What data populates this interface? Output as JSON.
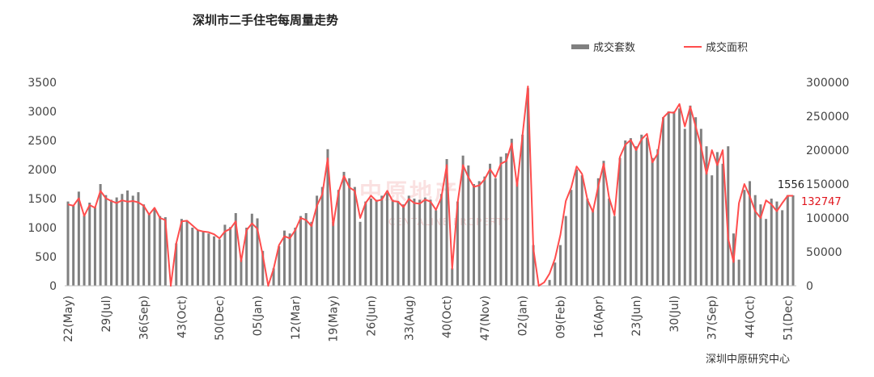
{
  "chart_data": {
    "type": "bar",
    "title": "深圳市二手住宅每周量走势",
    "source": "深圳中原研究中心",
    "watermark": "中原地产",
    "watermark_sub": "CENTALINE PROPERTY",
    "legend_placement": "top-right",
    "grid": false,
    "x_tick_labels": [
      "22(May)",
      "29(Jul)",
      "36(Sep)",
      "43(Oct)",
      "50(Dec)",
      "05(Jan)",
      "12(Mar)",
      "19(May)",
      "26(Jun)",
      "33(Aug)",
      "40(Oct)",
      "47(Nov)",
      "02(Jan)",
      "09(Feb)",
      "16(Apr)",
      "23(Jun)",
      "30(Jul)",
      "37(Sep)",
      "44(Oct)",
      "51(Dec)"
    ],
    "x_tick_index": [
      0,
      7,
      14,
      21,
      28,
      35,
      42,
      49,
      56,
      63,
      70,
      77,
      84,
      91,
      98,
      105,
      112,
      119,
      126,
      133
    ],
    "y_left": {
      "ylim": [
        0,
        3500
      ],
      "ticks": [
        0,
        500,
        1000,
        1500,
        2000,
        2500,
        3000,
        3500
      ]
    },
    "y_right": {
      "ylim": [
        0,
        300000
      ],
      "ticks": [
        0,
        50000,
        100000,
        150000,
        200000,
        250000,
        300000
      ]
    },
    "annotations": {
      "last_bar_value": "1556",
      "last_line_value": "132747"
    },
    "colors": {
      "bars": "#808080",
      "line": "#ff4d4d",
      "line_label": "#e0161e"
    },
    "series": [
      {
        "name": "成交套数",
        "axis": "left",
        "type": "bar",
        "values": [
          1450,
          1380,
          1620,
          1210,
          1430,
          1350,
          1750,
          1560,
          1480,
          1520,
          1580,
          1640,
          1550,
          1610,
          1400,
          1250,
          1320,
          1200,
          1180,
          0,
          730,
          1150,
          1120,
          1000,
          960,
          940,
          900,
          850,
          800,
          1050,
          1010,
          1250,
          450,
          1000,
          1240,
          1160,
          600,
          0,
          300,
          680,
          950,
          900,
          1000,
          1200,
          1250,
          1100,
          1550,
          1700,
          2350,
          1100,
          1650,
          1960,
          1850,
          1700,
          1100,
          1450,
          1500,
          1480,
          1550,
          1600,
          1480,
          1460,
          1400,
          1550,
          1500,
          1480,
          1520,
          1480,
          1300,
          1580,
          2180,
          300,
          1450,
          2240,
          2070,
          1750,
          1800,
          1880,
          2100,
          1850,
          2220,
          2280,
          2530,
          1800,
          2600,
          3400,
          700,
          0,
          0,
          100,
          400,
          700,
          1200,
          1650,
          2000,
          1900,
          1500,
          1300,
          1850,
          2150,
          1500,
          1200,
          2200,
          2500,
          2540,
          2400,
          2600,
          2550,
          2200,
          2350,
          2900,
          3000,
          3000,
          3050,
          2700,
          3100,
          2900,
          2700,
          2400,
          1900,
          2300,
          2100,
          2400,
          900,
          450,
          1650,
          1800,
          1560,
          1400,
          1150,
          1500,
          1450,
          1300,
          1560,
          1556
        ]
      },
      {
        "name": "成交面积",
        "axis": "right",
        "type": "line",
        "values": [
          120000,
          118000,
          129000,
          103000,
          119000,
          115000,
          140000,
          129000,
          125000,
          122000,
          126000,
          124000,
          125000,
          123000,
          118000,
          105000,
          115000,
          100000,
          97000,
          0,
          62000,
          95000,
          96000,
          89000,
          82000,
          80000,
          79000,
          76000,
          70000,
          80000,
          84000,
          95000,
          36000,
          82000,
          92000,
          84000,
          45000,
          0,
          25000,
          60000,
          73000,
          70000,
          82000,
          100000,
          97000,
          88000,
          118000,
          135000,
          188000,
          89000,
          138000,
          162000,
          145000,
          140000,
          100000,
          122000,
          133000,
          125000,
          127000,
          140000,
          125000,
          124000,
          116000,
          128000,
          122000,
          121000,
          127000,
          124000,
          112000,
          130000,
          178000,
          25000,
          122000,
          178000,
          160000,
          146000,
          148000,
          157000,
          172000,
          160000,
          180000,
          184000,
          210000,
          147000,
          222000,
          294000,
          55000,
          0,
          5000,
          18000,
          40000,
          75000,
          125000,
          145000,
          176000,
          165000,
          127000,
          109000,
          147000,
          180000,
          130000,
          104000,
          190000,
          208000,
          215000,
          200000,
          216000,
          224000,
          182000,
          195000,
          248000,
          256000,
          255000,
          268000,
          235000,
          264000,
          235000,
          205000,
          165000,
          200000,
          178000,
          200000,
          70000,
          35000,
          122000,
          150000,
          132000,
          110000,
          100000,
          126000,
          120000,
          110000,
          122000,
          132747,
          132747
        ]
      }
    ]
  }
}
